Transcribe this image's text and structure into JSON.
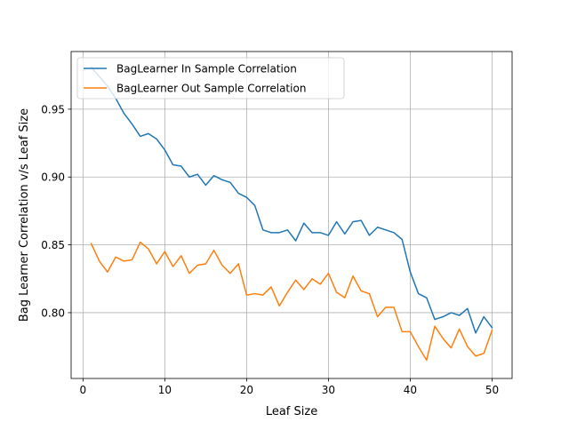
{
  "chart_data": {
    "type": "line",
    "title": "",
    "xlabel": "Leaf Size",
    "ylabel": "Bag Learner Correlation v/s Leaf Size",
    "xlim": [
      -1.45,
      52.45
    ],
    "ylim": [
      0.7515,
      0.9925
    ],
    "xticks": [
      0,
      10,
      20,
      30,
      40,
      50
    ],
    "yticks": [
      0.8,
      0.85,
      0.9,
      0.95
    ],
    "xtick_labels": [
      "0",
      "10",
      "20",
      "30",
      "40",
      "50"
    ],
    "ytick_labels": [
      "0.80",
      "0.85",
      "0.90",
      "0.95"
    ],
    "grid": true,
    "legend_position": "upper-left",
    "x": [
      1,
      2,
      3,
      4,
      5,
      6,
      7,
      8,
      9,
      10,
      11,
      12,
      13,
      14,
      15,
      16,
      17,
      18,
      19,
      20,
      21,
      22,
      23,
      24,
      25,
      26,
      27,
      28,
      29,
      30,
      31,
      32,
      33,
      34,
      35,
      36,
      37,
      38,
      39,
      40,
      41,
      42,
      43,
      44,
      45,
      46,
      47,
      48,
      49,
      50
    ],
    "series": [
      {
        "name": "BagLearner In Sample Correlation",
        "color": "#1f77b4",
        "values": [
          0.981,
          0.974,
          0.967,
          0.958,
          0.947,
          0.939,
          0.93,
          0.932,
          0.928,
          0.92,
          0.909,
          0.908,
          0.9,
          0.902,
          0.894,
          0.901,
          0.898,
          0.896,
          0.888,
          0.885,
          0.879,
          0.861,
          0.859,
          0.859,
          0.861,
          0.853,
          0.866,
          0.859,
          0.859,
          0.857,
          0.867,
          0.858,
          0.867,
          0.868,
          0.857,
          0.863,
          0.861,
          0.859,
          0.854,
          0.83,
          0.814,
          0.811,
          0.795,
          0.797,
          0.8,
          0.798,
          0.803,
          0.785,
          0.797,
          0.789
        ]
      },
      {
        "name": "BagLearner Out Sample Correlation",
        "color": "#ff7f0e",
        "values": [
          0.851,
          0.838,
          0.83,
          0.841,
          0.838,
          0.839,
          0.852,
          0.847,
          0.836,
          0.845,
          0.834,
          0.842,
          0.829,
          0.835,
          0.836,
          0.846,
          0.835,
          0.829,
          0.836,
          0.813,
          0.814,
          0.813,
          0.819,
          0.805,
          0.815,
          0.824,
          0.817,
          0.825,
          0.821,
          0.829,
          0.815,
          0.811,
          0.827,
          0.816,
          0.814,
          0.797,
          0.804,
          0.804,
          0.786,
          0.786,
          0.775,
          0.765,
          0.79,
          0.781,
          0.774,
          0.788,
          0.775,
          0.768,
          0.77,
          0.787
        ]
      }
    ]
  }
}
